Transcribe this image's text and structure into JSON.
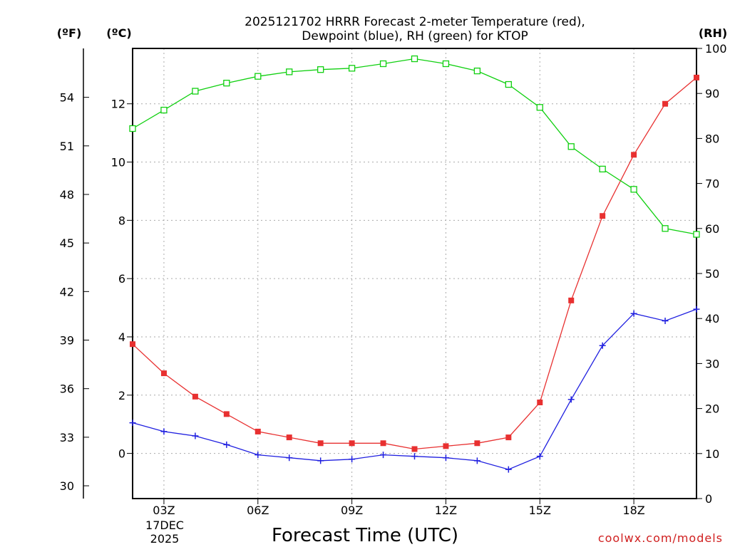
{
  "title_line1": "2025121702 HRRR Forecast 2-meter Temperature (red),",
  "title_line2": "Dewpoint (blue), RH (green) for KTOP",
  "xlabel": "Forecast Time (UTC)",
  "credit": "coolwx.com/models",
  "units": {
    "f": "(ºF)",
    "c": "(ºC)",
    "rh": "(RH)"
  },
  "date": {
    "day": "17DEC",
    "year": "2025"
  },
  "colors": {
    "temperature": "#e83030",
    "dewpoint": "#2020e0",
    "rh": "#10d010",
    "grid": "#aaaaaa"
  },
  "chart_data": {
    "type": "line",
    "title": "2025121702 HRRR Forecast 2-meter Temperature (red), Dewpoint (blue), RH (green) for KTOP",
    "xlabel": "Forecast Time (UTC)",
    "x": [
      2,
      3,
      4,
      5,
      6,
      7,
      8,
      9,
      10,
      11,
      12,
      13,
      14,
      15,
      16,
      17,
      18,
      19,
      20
    ],
    "xlim": [
      2,
      20
    ],
    "x_ticks": [
      3,
      6,
      9,
      12,
      15,
      18
    ],
    "x_tick_labels": [
      "03Z",
      "06Z",
      "09Z",
      "12Z",
      "15Z",
      "18Z"
    ],
    "y_left_c": {
      "label": "(ºC)",
      "lim": [
        -1.55,
        13.9
      ],
      "ticks": [
        0,
        2,
        4,
        6,
        8,
        10,
        12
      ]
    },
    "y_left_f": {
      "label": "(ºF)",
      "ticks": [
        30,
        33,
        36,
        39,
        42,
        45,
        48,
        51,
        54
      ]
    },
    "y_right_rh": {
      "label": "(RH)",
      "lim": [
        0,
        100
      ],
      "ticks": [
        0,
        10,
        20,
        30,
        40,
        50,
        60,
        70,
        80,
        90,
        100
      ]
    },
    "series": [
      {
        "name": "Temperature",
        "axis": "c",
        "marker": "filled-square",
        "values": [
          3.75,
          2.75,
          1.95,
          1.35,
          0.75,
          0.55,
          0.35,
          0.35,
          0.35,
          0.15,
          0.25,
          0.35,
          0.55,
          1.75,
          5.25,
          8.15,
          10.25,
          12.0,
          12.9
        ]
      },
      {
        "name": "Dewpoint",
        "axis": "c",
        "marker": "plus",
        "values": [
          1.05,
          0.75,
          0.6,
          0.3,
          -0.05,
          -0.15,
          -0.25,
          -0.2,
          -0.05,
          -0.1,
          -0.15,
          -0.25,
          -0.55,
          -0.1,
          1.85,
          3.7,
          4.8,
          4.55,
          4.95
        ]
      },
      {
        "name": "RH",
        "axis": "rh",
        "marker": "open-square",
        "values": [
          82.2,
          86.3,
          90.5,
          92.3,
          93.8,
          94.8,
          95.3,
          95.6,
          96.6,
          97.7,
          96.6,
          95.0,
          92.0,
          86.9,
          78.2,
          73.2,
          68.7,
          60.0,
          58.7
        ]
      }
    ]
  }
}
